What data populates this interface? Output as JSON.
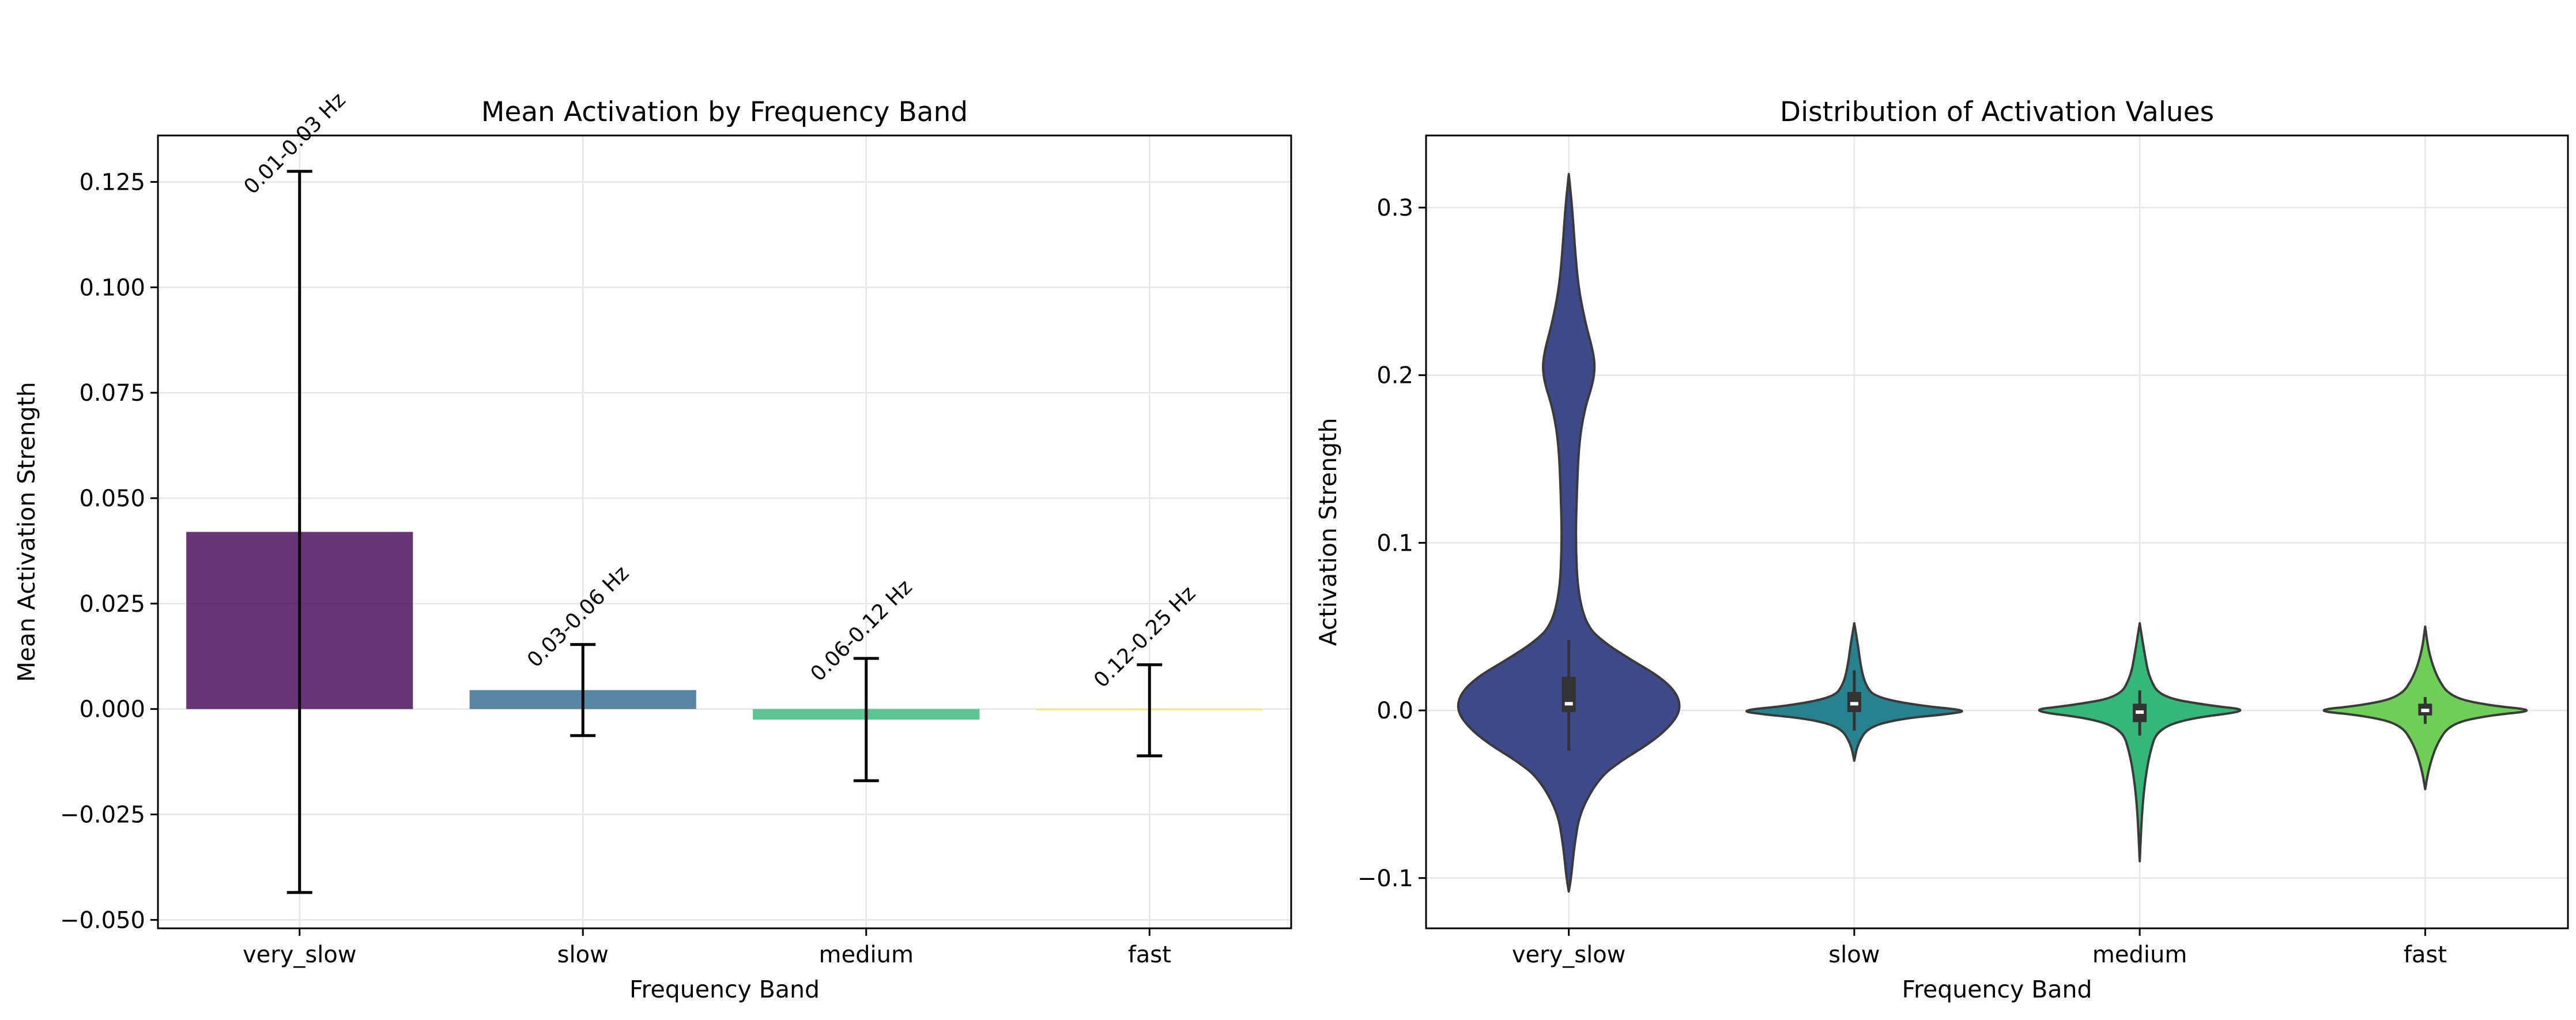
{
  "chart_data": [
    {
      "type": "bar",
      "title": "Mean Activation by Frequency Band",
      "xlabel": "Frequency Band",
      "ylabel": "Mean Activation Strength",
      "categories": [
        "very_slow",
        "slow",
        "medium",
        "fast"
      ],
      "values": [
        0.042,
        0.0045,
        -0.0025,
        -0.0003
      ],
      "error": [
        0.0855,
        0.0108,
        0.0145,
        0.0108
      ],
      "bar_labels": [
        "0.01-0.03 Hz",
        "0.03-0.06 Hz",
        "0.06-0.12 Hz",
        "0.12-0.25 Hz"
      ],
      "colors": [
        "#440154",
        "#31688e",
        "#35b779",
        "#fde725"
      ],
      "ylim": [
        -0.052,
        0.136
      ],
      "yticks": [
        -0.05,
        -0.025,
        0,
        0.025,
        0.05,
        0.075,
        0.1,
        0.125
      ],
      "ytick_labels": [
        "−0.050",
        "−0.025",
        "0.000",
        "0.025",
        "0.050",
        "0.075",
        "0.100",
        "0.125"
      ],
      "grid": true
    },
    {
      "type": "violin",
      "title": "Distribution of Activation Values",
      "xlabel": "Frequency Band",
      "ylabel": "Activation Strength",
      "categories": [
        "very_slow",
        "slow",
        "medium",
        "fast"
      ],
      "colors": [
        "#3e4989",
        "#26828e",
        "#35b779",
        "#6ece58"
      ],
      "ylim": [
        -0.13,
        0.343
      ],
      "yticks": [
        -0.1,
        0,
        0.1,
        0.2,
        0.3
      ],
      "ytick_labels": [
        "−0.1",
        "0.0",
        "0.1",
        "0.2",
        "0.3"
      ],
      "grid": true,
      "distributions": [
        {
          "name": "very_slow",
          "min": -0.108,
          "max": 0.32,
          "q1": -0.001,
          "median": 0.004,
          "q3": 0.02,
          "whisker_low": -0.024,
          "whisker_high": 0.042,
          "profile": [
            [
              -0.108,
              0
            ],
            [
              -0.1,
              0.02
            ],
            [
              -0.08,
              0.05
            ],
            [
              -0.06,
              0.1
            ],
            [
              -0.04,
              0.27
            ],
            [
              -0.03,
              0.46
            ],
            [
              -0.02,
              0.7
            ],
            [
              -0.01,
              0.88
            ],
            [
              0,
              0.98
            ],
            [
              0.01,
              0.95
            ],
            [
              0.02,
              0.8
            ],
            [
              0.03,
              0.55
            ],
            [
              0.04,
              0.32
            ],
            [
              0.05,
              0.16
            ],
            [
              0.07,
              0.08
            ],
            [
              0.1,
              0.06
            ],
            [
              0.13,
              0.07
            ],
            [
              0.16,
              0.09
            ],
            [
              0.18,
              0.14
            ],
            [
              0.195,
              0.21
            ],
            [
              0.205,
              0.23
            ],
            [
              0.215,
              0.21
            ],
            [
              0.23,
              0.15
            ],
            [
              0.25,
              0.09
            ],
            [
              0.27,
              0.06
            ],
            [
              0.3,
              0.03
            ],
            [
              0.32,
              0
            ]
          ]
        },
        {
          "name": "slow",
          "min": -0.03,
          "max": 0.052,
          "q1": -0.001,
          "median": 0.004,
          "q3": 0.011,
          "whisker_low": -0.012,
          "whisker_high": 0.024,
          "profile": [
            [
              -0.03,
              0
            ],
            [
              -0.02,
              0.03
            ],
            [
              -0.01,
              0.12
            ],
            [
              -0.005,
              0.4
            ],
            [
              -0.002,
              0.85
            ],
            [
              0,
              1.0
            ],
            [
              0.003,
              0.55
            ],
            [
              0.008,
              0.18
            ],
            [
              0.015,
              0.1
            ],
            [
              0.025,
              0.06
            ],
            [
              0.04,
              0.03
            ],
            [
              0.052,
              0
            ]
          ]
        },
        {
          "name": "medium",
          "min": -0.09,
          "max": 0.052,
          "q1": -0.007,
          "median": -0.001,
          "q3": 0.004,
          "whisker_low": -0.015,
          "whisker_high": 0.012,
          "profile": [
            [
              -0.09,
              0
            ],
            [
              -0.06,
              0.02
            ],
            [
              -0.04,
              0.05
            ],
            [
              -0.025,
              0.09
            ],
            [
              -0.012,
              0.15
            ],
            [
              -0.005,
              0.4
            ],
            [
              0,
              1.0
            ],
            [
              0.003,
              0.6
            ],
            [
              0.008,
              0.18
            ],
            [
              0.02,
              0.08
            ],
            [
              0.035,
              0.04
            ],
            [
              0.052,
              0
            ]
          ]
        },
        {
          "name": "fast",
          "min": -0.047,
          "max": 0.05,
          "q1": -0.003,
          "median": 0.0,
          "q3": 0.004,
          "whisker_low": -0.008,
          "whisker_high": 0.008,
          "profile": [
            [
              -0.047,
              0
            ],
            [
              -0.035,
              0.03
            ],
            [
              -0.02,
              0.1
            ],
            [
              -0.008,
              0.22
            ],
            [
              -0.003,
              0.55
            ],
            [
              0,
              1.0
            ],
            [
              0.003,
              0.55
            ],
            [
              0.008,
              0.22
            ],
            [
              0.02,
              0.1
            ],
            [
              0.035,
              0.03
            ],
            [
              0.05,
              0
            ]
          ]
        }
      ]
    }
  ]
}
